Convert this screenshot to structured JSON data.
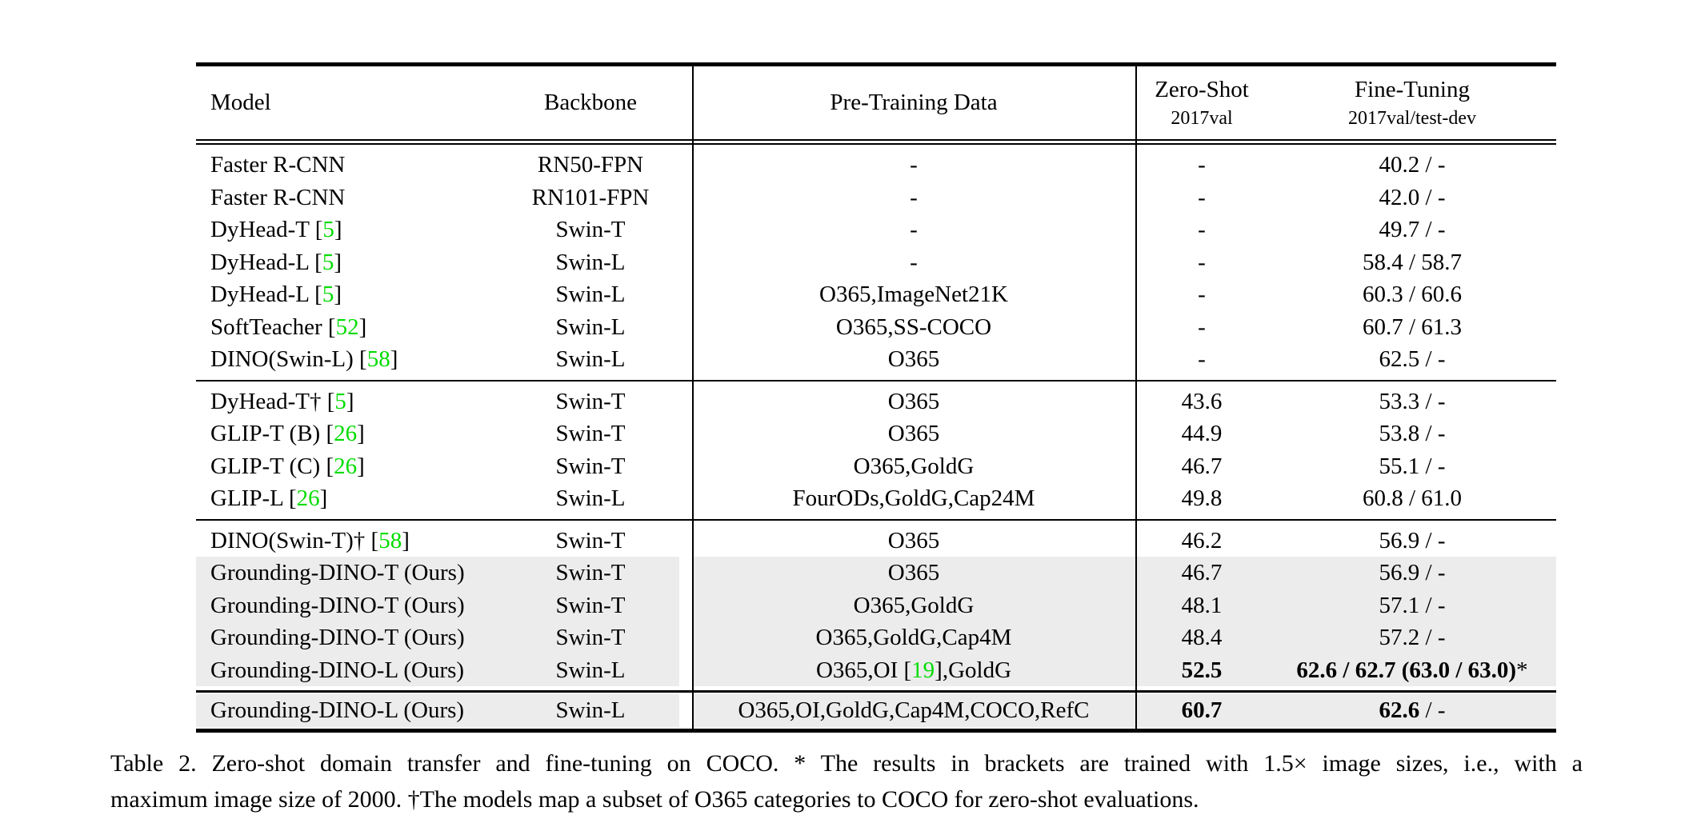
{
  "table": {
    "ref_color": "#00dc00",
    "shade_color": "#ececec",
    "columns": [
      {
        "label": "Model"
      },
      {
        "label": "Backbone"
      },
      {
        "label": "Pre-Training Data"
      },
      {
        "label": "Zero-Shot",
        "sub": "2017val"
      },
      {
        "label": "Fine-Tuning",
        "sub": "2017val/test-dev"
      }
    ],
    "blocks": [
      {
        "rows": [
          {
            "model": "Faster R-CNN",
            "backbone": "RN50-FPN",
            "pretrain": "-",
            "zero_shot": "-",
            "fine_tuning": "40.2 / -"
          },
          {
            "model": "Faster R-CNN",
            "backbone": "RN101-FPN",
            "pretrain": "-",
            "zero_shot": "-",
            "fine_tuning": "42.0 / -"
          },
          {
            "model": [
              {
                "t": "DyHead-T ["
              },
              {
                "t": "5",
                "s": "ref"
              },
              {
                "t": "]"
              }
            ],
            "backbone": "Swin-T",
            "pretrain": "-",
            "zero_shot": "-",
            "fine_tuning": "49.7 / -"
          },
          {
            "model": [
              {
                "t": "DyHead-L ["
              },
              {
                "t": "5",
                "s": "ref"
              },
              {
                "t": "]"
              }
            ],
            "backbone": "Swin-L",
            "pretrain": "-",
            "zero_shot": "-",
            "fine_tuning": "58.4 / 58.7"
          },
          {
            "model": [
              {
                "t": "DyHead-L ["
              },
              {
                "t": "5",
                "s": "ref"
              },
              {
                "t": "]"
              }
            ],
            "backbone": "Swin-L",
            "pretrain": "O365,ImageNet21K",
            "zero_shot": "-",
            "fine_tuning": "60.3 / 60.6"
          },
          {
            "model": [
              {
                "t": "SoftTeacher ["
              },
              {
                "t": "52",
                "s": "ref"
              },
              {
                "t": "]"
              }
            ],
            "backbone": "Swin-L",
            "pretrain": "O365,SS-COCO",
            "zero_shot": "-",
            "fine_tuning": "60.7 / 61.3"
          },
          {
            "model": [
              {
                "t": "DINO(Swin-L) ["
              },
              {
                "t": "58",
                "s": "ref"
              },
              {
                "t": "]"
              }
            ],
            "backbone": "Swin-L",
            "pretrain": "O365",
            "zero_shot": "-",
            "fine_tuning": "62.5 / -"
          }
        ]
      },
      {
        "rows": [
          {
            "model": [
              {
                "t": "DyHead-T† ["
              },
              {
                "t": "5",
                "s": "ref"
              },
              {
                "t": "]"
              }
            ],
            "backbone": "Swin-T",
            "pretrain": "O365",
            "zero_shot": "43.6",
            "fine_tuning": "53.3 / -"
          },
          {
            "model": [
              {
                "t": "GLIP-T (B) ["
              },
              {
                "t": "26",
                "s": "ref"
              },
              {
                "t": "]"
              }
            ],
            "backbone": "Swin-T",
            "pretrain": "O365",
            "zero_shot": "44.9",
            "fine_tuning": "53.8 / -"
          },
          {
            "model": [
              {
                "t": "GLIP-T (C) ["
              },
              {
                "t": "26",
                "s": "ref"
              },
              {
                "t": "]"
              }
            ],
            "backbone": "Swin-T",
            "pretrain": "O365,GoldG",
            "zero_shot": "46.7",
            "fine_tuning": "55.1 / -"
          },
          {
            "model": [
              {
                "t": "GLIP-L ["
              },
              {
                "t": "26",
                "s": "ref"
              },
              {
                "t": "]"
              }
            ],
            "backbone": "Swin-L",
            "pretrain": "FourODs,GoldG,Cap24M",
            "zero_shot": "49.8",
            "fine_tuning": "60.8 / 61.0"
          }
        ]
      },
      {
        "rows": [
          {
            "model": [
              {
                "t": "DINO(Swin-T)† ["
              },
              {
                "t": "58",
                "s": "ref"
              },
              {
                "t": "]"
              }
            ],
            "backbone": "Swin-T",
            "pretrain": "O365",
            "zero_shot": "46.2",
            "fine_tuning": "56.9 / -"
          },
          {
            "model": "Grounding-DINO-T (Ours)",
            "backbone": "Swin-T",
            "pretrain": "O365",
            "zero_shot": "46.7",
            "fine_tuning": "56.9 / -",
            "shaded": true
          },
          {
            "model": "Grounding-DINO-T (Ours)",
            "backbone": "Swin-T",
            "pretrain": "O365,GoldG",
            "zero_shot": "48.1",
            "fine_tuning": "57.1 / -",
            "shaded": true
          },
          {
            "model": "Grounding-DINO-T (Ours)",
            "backbone": "Swin-T",
            "pretrain": "O365,GoldG,Cap4M",
            "zero_shot": "48.4",
            "fine_tuning": "57.2 / -",
            "shaded": true
          },
          {
            "model": "Grounding-DINO-L (Ours)",
            "backbone": "Swin-L",
            "pretrain": [
              {
                "t": "O365,OI ["
              },
              {
                "t": "19",
                "s": "ref"
              },
              {
                "t": "],GoldG"
              }
            ],
            "zero_shot": [
              {
                "t": "52.5",
                "s": "b"
              }
            ],
            "fine_tuning": [
              {
                "t": "62.6 / 62.7 (63.0 / 63.0)",
                "s": "b"
              },
              {
                "t": "*"
              }
            ],
            "shaded": true
          }
        ]
      },
      {
        "rows": [
          {
            "model": "Grounding-DINO-L (Ours)",
            "backbone": "Swin-L",
            "pretrain": "O365,OI,GoldG,Cap4M,COCO,RefC",
            "zero_shot": [
              {
                "t": "60.7",
                "s": "b"
              }
            ],
            "fine_tuning": [
              {
                "t": "62.6",
                "s": "b"
              },
              {
                "t": " / -"
              }
            ],
            "shaded": true
          }
        ]
      }
    ]
  },
  "caption": {
    "line1": "Table 2.  Zero-shot domain transfer and fine-tuning on COCO. * The results in brackets are trained with 1.5× image sizes, i.e., with a",
    "line2": "maximum image size of 2000. †The models map a subset of O365 categories to COCO for zero-shot evaluations."
  }
}
